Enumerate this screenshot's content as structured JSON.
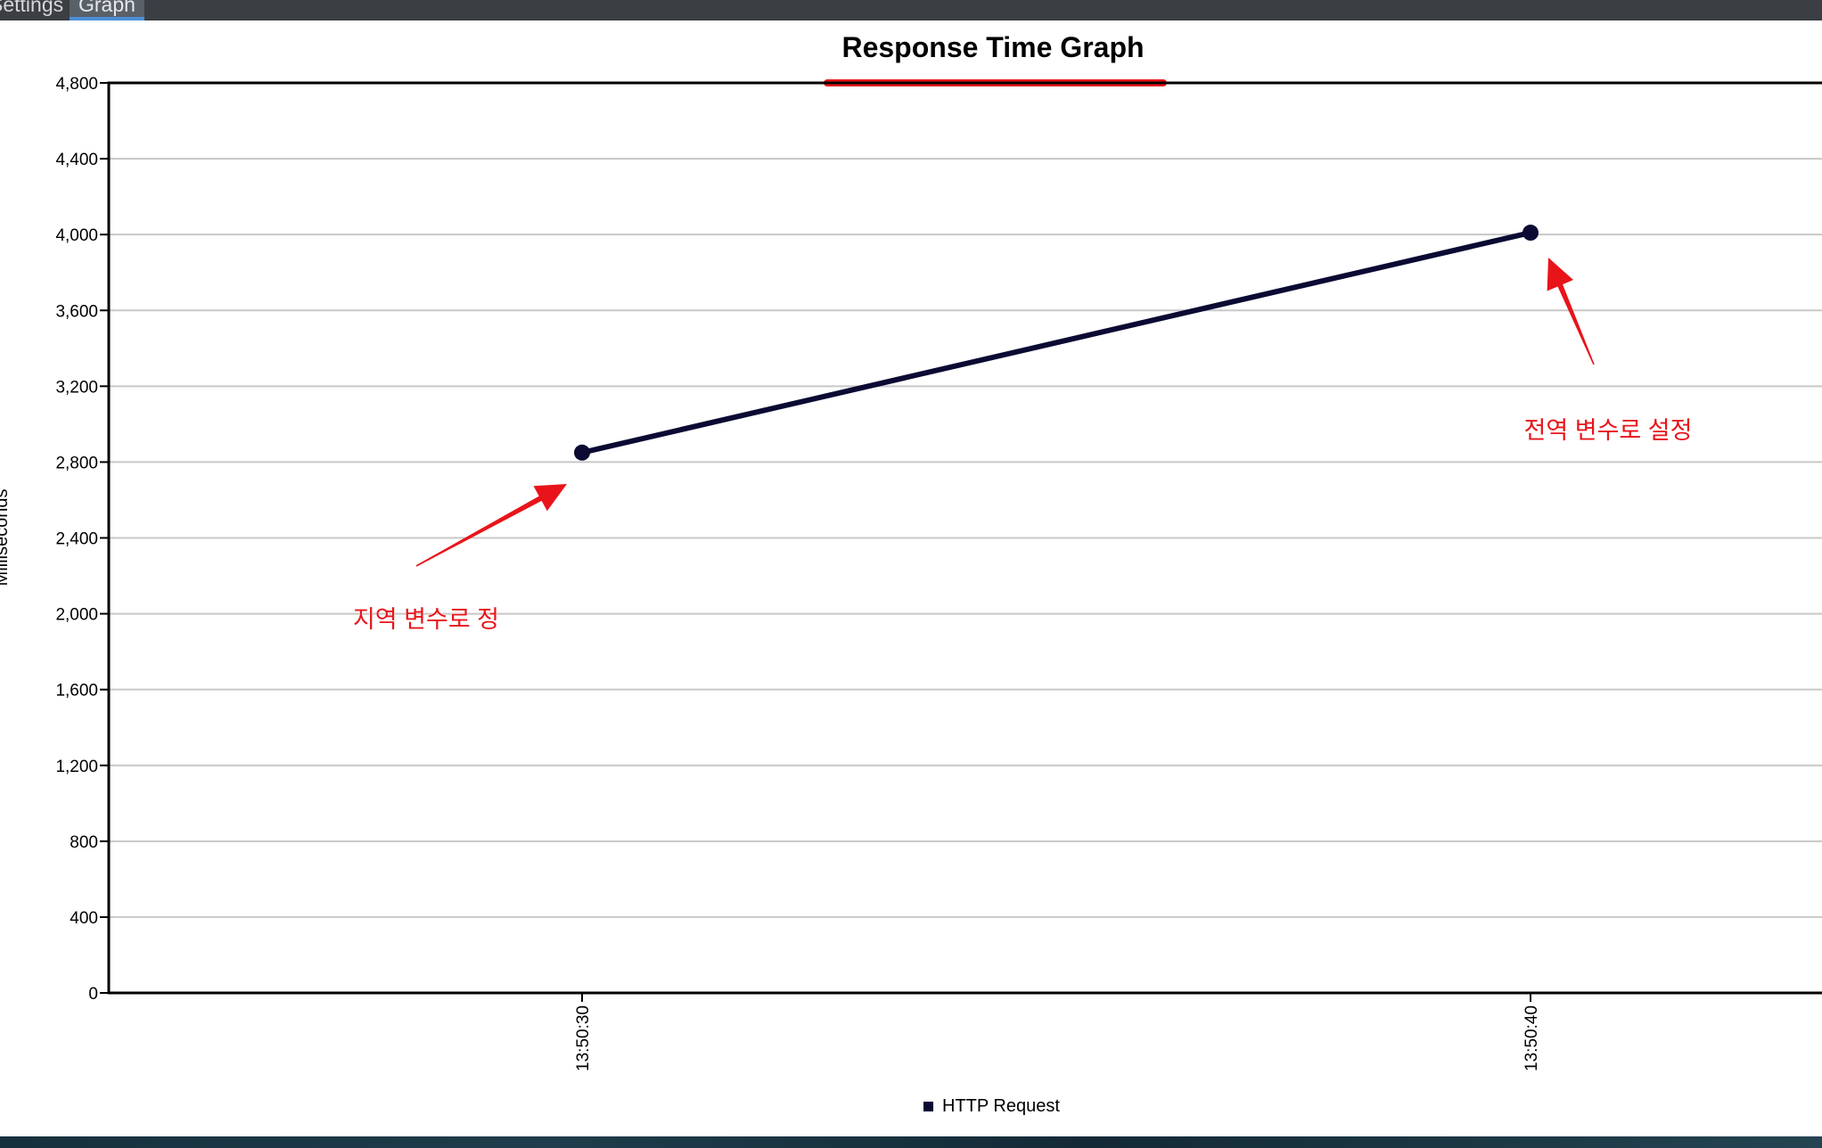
{
  "tabs": [
    {
      "label": "Settings"
    },
    {
      "label": "Graph",
      "active": true
    }
  ],
  "colors": {
    "series": "#0b0a33",
    "annotation": "#e8141a",
    "grid": "#c8c8c8"
  },
  "chart_data": {
    "type": "line",
    "title": "Response Time Graph",
    "xlabel": "",
    "ylabel": "Milliseconds",
    "x": [
      "13:50:30",
      "13:50:40"
    ],
    "series": [
      {
        "name": "HTTP Request",
        "values": [
          2850,
          4010
        ]
      }
    ],
    "ylim": [
      0,
      4800
    ],
    "yticks": [
      0,
      400,
      800,
      1200,
      1600,
      2000,
      2400,
      2800,
      3200,
      3600,
      4000,
      4400,
      4800
    ],
    "ytick_labels": [
      "0",
      "400",
      "800",
      "1,200",
      "1,600",
      "2,000",
      "2,400",
      "2,800",
      "3,200",
      "3,600",
      "4,000",
      "4,400",
      "4,800"
    ],
    "grid": true,
    "legend": "bottom-center",
    "annotations": [
      {
        "text": "지역 변수로 정",
        "target": {
          "x": "13:50:30",
          "y": 2850
        }
      },
      {
        "text": "전역 변수로 설정",
        "target": {
          "x": "13:50:40",
          "y": 4010
        }
      }
    ]
  }
}
